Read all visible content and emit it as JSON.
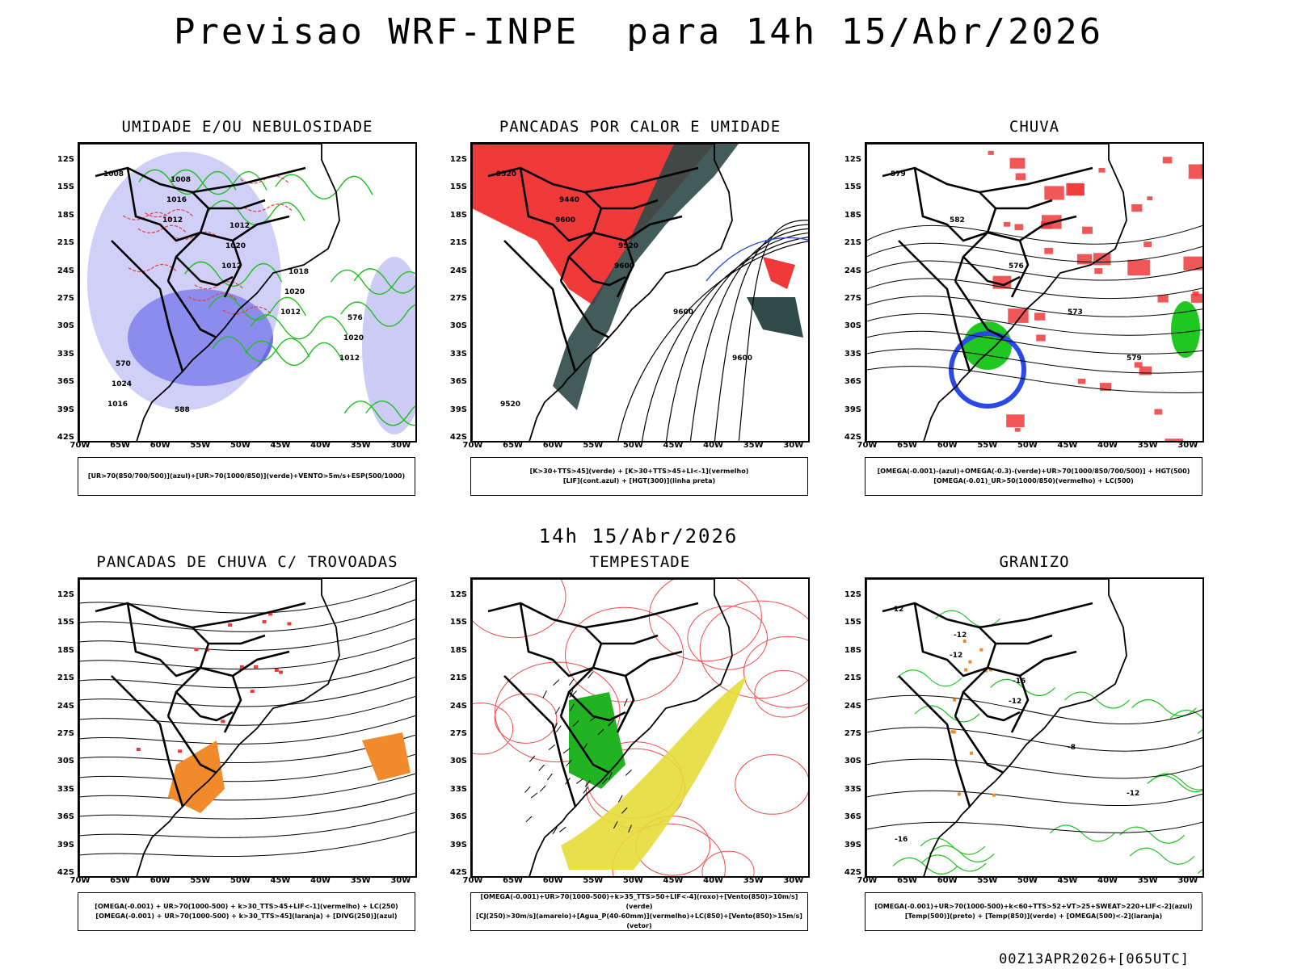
{
  "title": "Previsao WRF-INPE  para 14h 15/Abr/2026",
  "subtitle": "14h 15/Abr/2026",
  "footer": "00Z13APR2026+[065UTC]",
  "y_ticks": [
    "12S",
    "15S",
    "18S",
    "21S",
    "24S",
    "27S",
    "30S",
    "33S",
    "36S",
    "39S",
    "42S"
  ],
  "x_ticks": [
    "70W",
    "65W",
    "60W",
    "55W",
    "50W",
    "45W",
    "40W",
    "35W",
    "30W"
  ],
  "panels": [
    {
      "title": "UMIDADE E/OU NEBULOSIDADE",
      "legend": [
        "[UR>70(850/700/500)](azul)+[UR>70(1000/850)](verde)+VENTO>5m/s+ESP(500/1000)"
      ],
      "labels": [
        "1008",
        "1012",
        "1012",
        "1012",
        "1012",
        "1016",
        "1016",
        "1020",
        "1020",
        "1020",
        "1024",
        "1008",
        "1012",
        "1018",
        "576",
        "570",
        "588"
      ]
    },
    {
      "title": "PANCADAS POR CALOR E UMIDADE",
      "legend": [
        "[K>30+TTS>45](verde) + [K>30+TTS>45+LI<-1](vermelho)",
        "[LIF](cont.azul) + [HGT(300)](linha preta)"
      ],
      "labels": [
        "9520",
        "9600",
        "9600",
        "9600",
        "9600",
        "9520",
        "9440",
        "9520"
      ]
    },
    {
      "title": "CHUVA",
      "legend": [
        "[OMEGA(-0.001)-(azul)+OMEGA(-0.3)-(verde)+UR>70(1000/850/700/500)] + HGT(500)",
        "[OMEGA(-0.01)_UR>50(1000/850)(vermelho) + LC(500)"
      ],
      "labels": [
        "579",
        "582",
        "576",
        "573",
        "579"
      ]
    },
    {
      "title": "PANCADAS DE CHUVA C/ TROVOADAS",
      "legend": [
        "[OMEGA(-0.001) + UR>70(1000-500) + k>30_TTS>45+LIF<-1](vermelho) + LC(250)",
        "[OMEGA(-0.001) + UR>70(1000-500) + k>30_TTS>45](laranja) + [DIVG(250)](azul)"
      ],
      "labels": []
    },
    {
      "title": "TEMPESTADE",
      "legend": [
        "[OMEGA(-0.001)+UR>70(1000-500)+k>35_TTS>50+LIF<-4](roxo)+[Vento(850)>10m/s](verde)",
        "[CJ(250)>30m/s](amarelo)+[Agua_P(40-60mm)](vermelho)+LC(850)+[Vento(850)>15m/s](vetor)"
      ],
      "labels": []
    },
    {
      "title": "GRANIZO",
      "legend": [
        "[OMEGA(-0.001)+UR>70(1000-500)+k<60+TTS>52+VT>25+SWEAT>220+LIF<-2](azul)",
        "[Temp(500)](preto) + [Temp(850)](verde) + [OMEGA(500)<-2](laranja)"
      ],
      "labels": [
        "-12",
        "-12",
        "-12",
        "-8",
        "-12",
        "-16",
        "-12",
        "-16"
      ]
    }
  ]
}
